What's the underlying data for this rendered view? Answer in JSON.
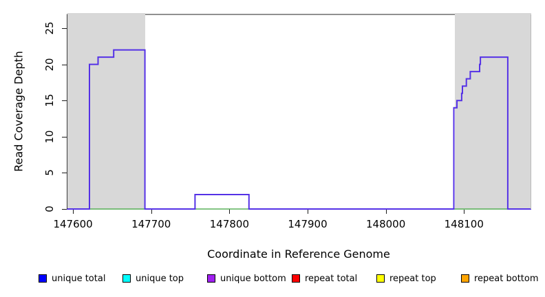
{
  "chart_data": {
    "type": "line",
    "subtype": "step-coverage",
    "title": "",
    "xlabel": "Coordinate in Reference Genome",
    "ylabel": "Read Coverage Depth",
    "xlim": [
      147592,
      148186
    ],
    "ylim": [
      0,
      27
    ],
    "x_ticks": [
      147600,
      147700,
      147800,
      147900,
      148000,
      148100
    ],
    "y_ticks": [
      0,
      5,
      10,
      15,
      20,
      25
    ],
    "grid": false,
    "legend_position": "bottom-horizontal",
    "shaded_regions": [
      {
        "name": "left-shaded-region",
        "start": 147592,
        "end": 147692,
        "color": "#d8d8d8"
      },
      {
        "name": "right-shaded-region",
        "start": 148088,
        "end": 148186,
        "color": "#d8d8d8"
      }
    ],
    "series": [
      {
        "name": "zero-baseline",
        "color": "#58b158",
        "width": 1.5,
        "segments": [
          [
            147592,
            148186,
            0
          ]
        ]
      },
      {
        "name": "coverage-step",
        "color": "#5431e6",
        "width": 2,
        "segments": [
          [
            147592,
            147621,
            0
          ],
          [
            147621,
            147632,
            20
          ],
          [
            147632,
            147652,
            21
          ],
          [
            147652,
            147692,
            22
          ],
          [
            147692,
            147756,
            0
          ],
          [
            147756,
            147825,
            2
          ],
          [
            147825,
            148087,
            0
          ],
          [
            148087,
            148091,
            14
          ],
          [
            148091,
            148097,
            15
          ],
          [
            148097,
            148098,
            16
          ],
          [
            148098,
            148103,
            17
          ],
          [
            148103,
            148108,
            18
          ],
          [
            148108,
            148120,
            19
          ],
          [
            148120,
            148121,
            20
          ],
          [
            148121,
            148156,
            21
          ],
          [
            148156,
            148186,
            0
          ]
        ]
      }
    ],
    "legend": [
      {
        "label": "unique total",
        "color": "#0000ff"
      },
      {
        "label": "unique top",
        "color": "#00ffff"
      },
      {
        "label": "unique bottom",
        "color": "#a020f0"
      },
      {
        "label": "repeat total",
        "color": "#ff0000"
      },
      {
        "label": "repeat top",
        "color": "#ffff00"
      },
      {
        "label": "repeat bottom",
        "color": "#ffa500"
      }
    ]
  }
}
